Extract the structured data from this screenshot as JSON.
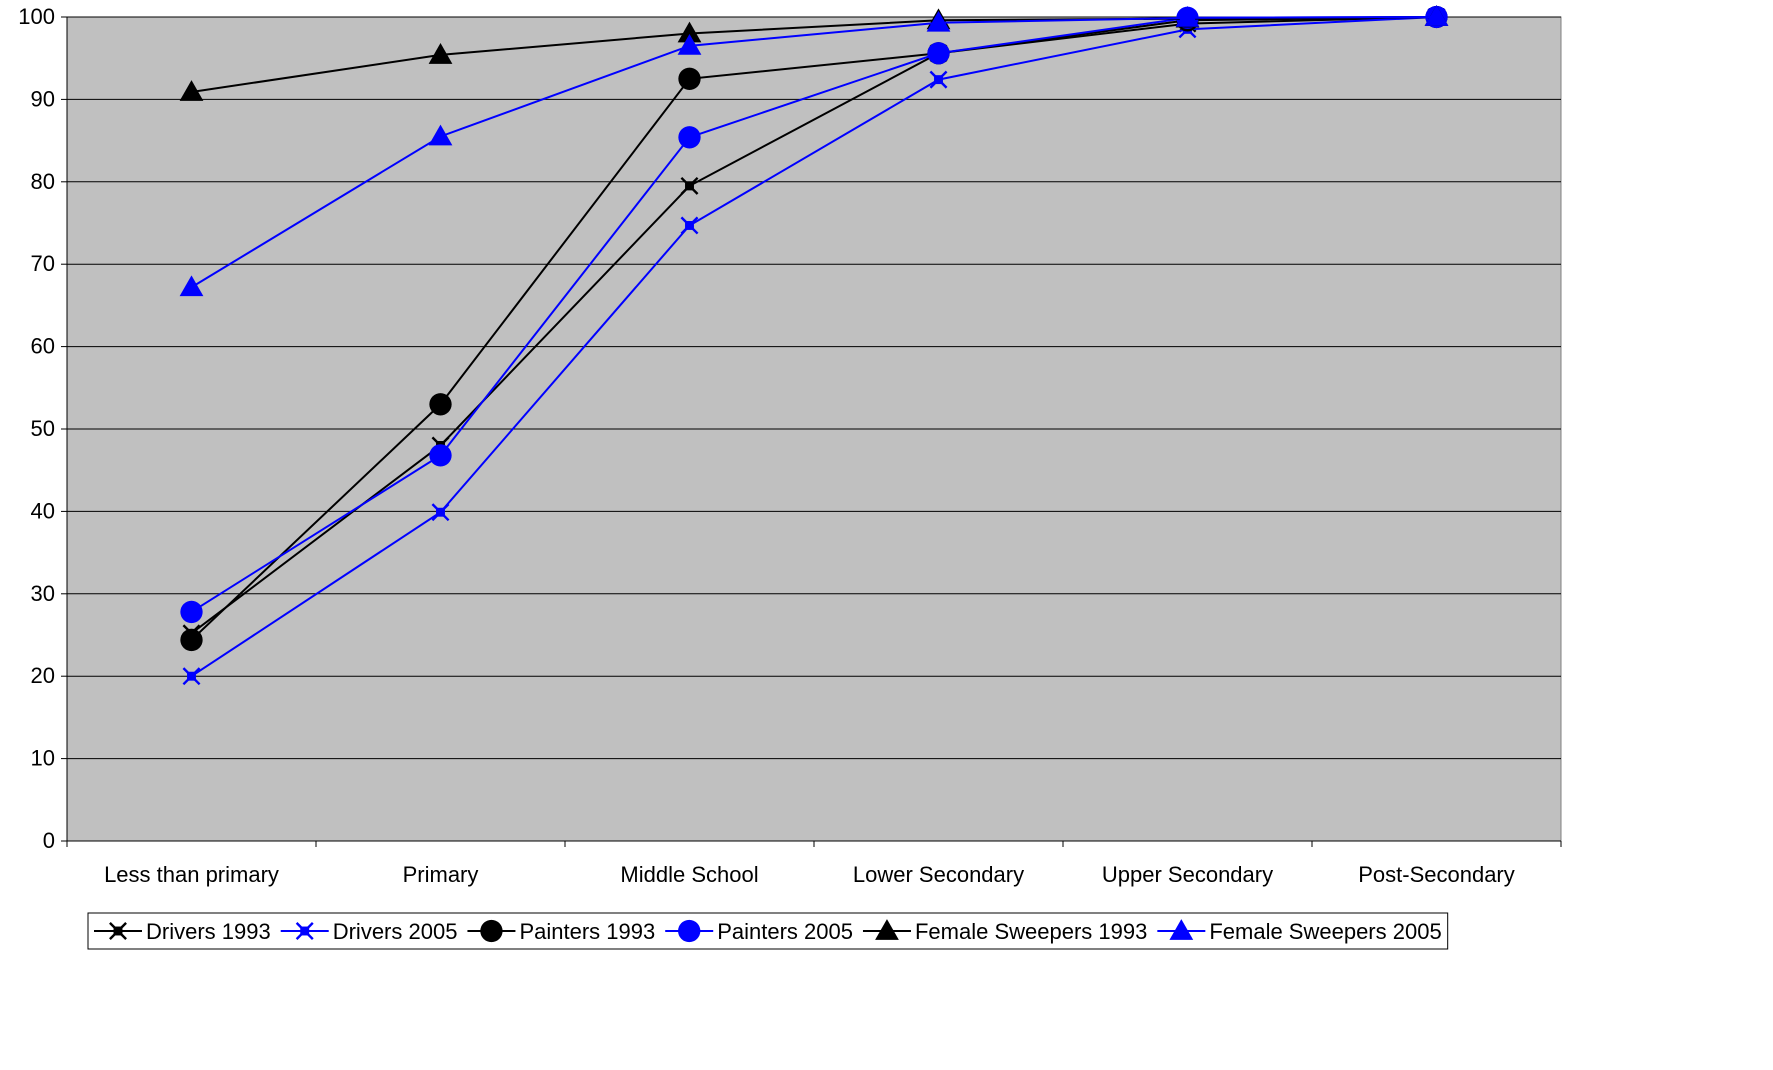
{
  "chart_data": {
    "type": "line",
    "title": "",
    "xlabel": "",
    "ylabel": "",
    "categories": [
      "Less than primary",
      "Primary",
      "Middle School",
      "Lower Secondary",
      "Upper Secondary",
      "Post-Secondary"
    ],
    "ylim": [
      0,
      100
    ],
    "yticks": [
      0,
      10,
      20,
      30,
      40,
      50,
      60,
      70,
      80,
      90,
      100
    ],
    "grid": true,
    "plot_background": "#c0c0c0",
    "legend_position": "bottom",
    "series": [
      {
        "name": "Drivers 1993",
        "color": "#000000",
        "marker": "star",
        "values": [
          25.2,
          48.0,
          79.5,
          95.6,
          99.2,
          100
        ]
      },
      {
        "name": "Drivers 2005",
        "color": "#0000ff",
        "marker": "star",
        "values": [
          20.0,
          39.9,
          74.7,
          92.4,
          98.5,
          100
        ]
      },
      {
        "name": "Painters 1993",
        "color": "#000000",
        "marker": "circle",
        "values": [
          24.4,
          53.0,
          92.5,
          95.6,
          99.6,
          100
        ]
      },
      {
        "name": "Painters 2005",
        "color": "#0000ff",
        "marker": "circle",
        "values": [
          27.8,
          46.8,
          85.4,
          95.6,
          99.9,
          100
        ]
      },
      {
        "name": "Female Sweepers 1993",
        "color": "#000000",
        "marker": "triangle",
        "values": [
          90.9,
          95.4,
          98.0,
          99.6,
          99.8,
          100
        ]
      },
      {
        "name": "Female Sweepers 2005",
        "color": "#0000ff",
        "marker": "triangle",
        "values": [
          67.2,
          85.5,
          96.5,
          99.3,
          99.9,
          100
        ]
      }
    ]
  }
}
